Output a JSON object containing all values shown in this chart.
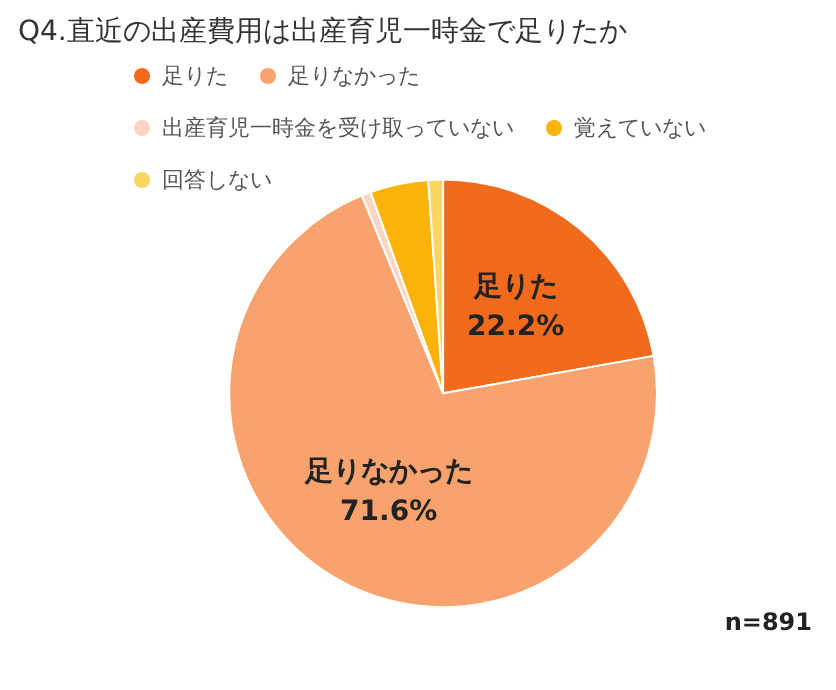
{
  "chart_data": {
    "type": "pie",
    "title": "Q4.直近の出産費用は出産育児一時金で足りたか",
    "categories": [
      "足りた",
      "足りなかった",
      "出産育児一時金を受け取っていない",
      "覚えていない",
      "回答しない"
    ],
    "values": [
      22.2,
      71.6,
      0.7,
      4.4,
      1.1
    ],
    "value_labels": [
      "22.2%",
      "71.6%",
      null,
      null,
      null
    ],
    "colors": [
      "#f26a1b",
      "#f8a36e",
      "#fbd6c3",
      "#fbb30a",
      "#fcd660"
    ],
    "legend": "top",
    "annotations": [
      "n=891"
    ]
  }
}
